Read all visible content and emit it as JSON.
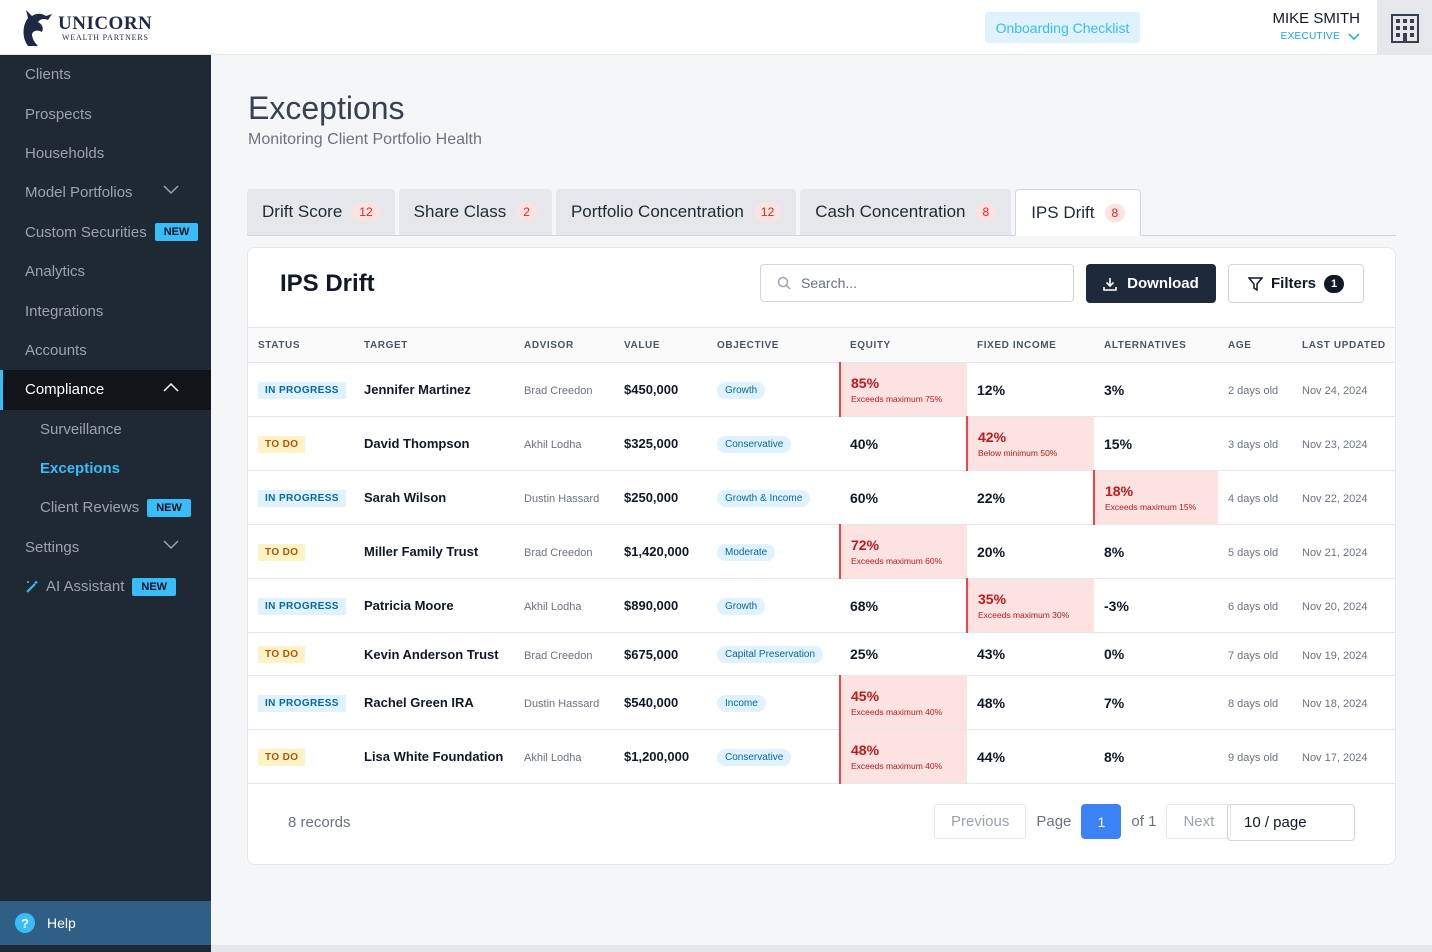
{
  "brand": {
    "name": "UNICORN",
    "sub": "WEALTH PARTNERS"
  },
  "header": {
    "onboarding_label": "Onboarding Checklist",
    "user_name": "MIKE SMITH",
    "user_role": "EXECUTIVE"
  },
  "sidebar": {
    "items": [
      {
        "label": "Clients"
      },
      {
        "label": "Prospects"
      },
      {
        "label": "Households"
      },
      {
        "label": "Model Portfolios"
      },
      {
        "label": "Custom Securities",
        "badge": "NEW"
      },
      {
        "label": "Analytics"
      },
      {
        "label": "Integrations"
      },
      {
        "label": "Accounts"
      },
      {
        "label": "Compliance"
      },
      {
        "label": "Surveillance"
      },
      {
        "label": "Exceptions"
      },
      {
        "label": "Client Reviews",
        "badge": "NEW"
      },
      {
        "label": "Settings"
      },
      {
        "label": "AI Assistant",
        "badge": "NEW"
      }
    ],
    "help_label": "Help"
  },
  "page": {
    "title": "Exceptions",
    "subtitle": "Monitoring Client Portfolio Health"
  },
  "tabs": [
    {
      "label": "Drift Score",
      "count": "12"
    },
    {
      "label": "Share Class",
      "count": "2"
    },
    {
      "label": "Portfolio Concentration",
      "count": "12"
    },
    {
      "label": "Cash Concentration",
      "count": "8"
    },
    {
      "label": "IPS Drift",
      "count": "8"
    }
  ],
  "card": {
    "title": "IPS Drift",
    "search_placeholder": "Search...",
    "download_label": "Download",
    "filters_label": "Filters",
    "filters_count": "1"
  },
  "table": {
    "headers": [
      "STATUS",
      "TARGET",
      "ADVISOR",
      "VALUE",
      "OBJECTIVE",
      "EQUITY",
      "FIXED INCOME",
      "ALTERNATIVES",
      "AGE",
      "LAST UPDATED"
    ],
    "rows": [
      {
        "status": "IN PROGRESS",
        "target": "Jennifer Martinez",
        "advisor": "Brad Creedon",
        "value": "$450,000",
        "objective": "Growth",
        "equity": "85%",
        "equity_note": "Exceeds maximum 75%",
        "fixed": "12%",
        "fixed_note": "",
        "alt": "3%",
        "alt_note": "",
        "age": "2 days old",
        "updated": "Nov 24, 2024"
      },
      {
        "status": "TO DO",
        "target": "David Thompson",
        "advisor": "Akhil Lodha",
        "value": "$325,000",
        "objective": "Conservative",
        "equity": "40%",
        "equity_note": "",
        "fixed": "42%",
        "fixed_note": "Below minimum 50%",
        "alt": "15%",
        "alt_note": "",
        "age": "3 days old",
        "updated": "Nov 23, 2024"
      },
      {
        "status": "IN PROGRESS",
        "target": "Sarah Wilson",
        "advisor": "Dustin Hassard",
        "value": "$250,000",
        "objective": "Growth & Income",
        "equity": "60%",
        "equity_note": "",
        "fixed": "22%",
        "fixed_note": "",
        "alt": "18%",
        "alt_note": "Exceeds maximum 15%",
        "age": "4 days old",
        "updated": "Nov 22, 2024"
      },
      {
        "status": "TO DO",
        "target": "Miller Family Trust",
        "advisor": "Brad Creedon",
        "value": "$1,420,000",
        "objective": "Moderate",
        "equity": "72%",
        "equity_note": "Exceeds maximum 60%",
        "fixed": "20%",
        "fixed_note": "",
        "alt": "8%",
        "alt_note": "",
        "age": "5 days old",
        "updated": "Nov 21, 2024"
      },
      {
        "status": "IN PROGRESS",
        "target": "Patricia Moore",
        "advisor": "Akhil Lodha",
        "value": "$890,000",
        "objective": "Growth",
        "equity": "68%",
        "equity_note": "",
        "fixed": "35%",
        "fixed_note": "Exceeds maximum 30%",
        "alt": "-3%",
        "alt_note": "",
        "age": "6 days old",
        "updated": "Nov 20, 2024"
      },
      {
        "status": "TO DO",
        "target": "Kevin Anderson Trust",
        "advisor": "Brad Creedon",
        "value": "$675,000",
        "objective": "Capital Preservation",
        "equity": "25%",
        "equity_note": "",
        "fixed": "43%",
        "fixed_note": "",
        "alt": "0%",
        "alt_note": "",
        "age": "7 days old",
        "updated": "Nov 19, 2024"
      },
      {
        "status": "IN PROGRESS",
        "target": "Rachel Green IRA",
        "advisor": "Dustin Hassard",
        "value": "$540,000",
        "objective": "Income",
        "equity": "45%",
        "equity_note": "Exceeds maximum 40%",
        "fixed": "48%",
        "fixed_note": "",
        "alt": "7%",
        "alt_note": "",
        "age": "8 days old",
        "updated": "Nov 18, 2024"
      },
      {
        "status": "TO DO",
        "target": "Lisa White Foundation",
        "advisor": "Akhil Lodha",
        "value": "$1,200,000",
        "objective": "Conservative",
        "equity": "48%",
        "equity_note": "Exceeds maximum 40%",
        "fixed": "44%",
        "fixed_note": "",
        "alt": "8%",
        "alt_note": "",
        "age": "9 days old",
        "updated": "Nov 17, 2024"
      }
    ]
  },
  "footer": {
    "records": "8 records",
    "previous": "Previous",
    "page_label": "Page",
    "current_page": "1",
    "of_label": "of 1",
    "next": "Next",
    "page_size": "10 / page"
  },
  "colors": {
    "accent": "#38bdf8",
    "sidebar": "#1f2933",
    "danger_bg": "#fde2e2",
    "danger": "#b91c1c",
    "primary_btn": "#1e2a3a",
    "page_active": "#3b82f6"
  }
}
